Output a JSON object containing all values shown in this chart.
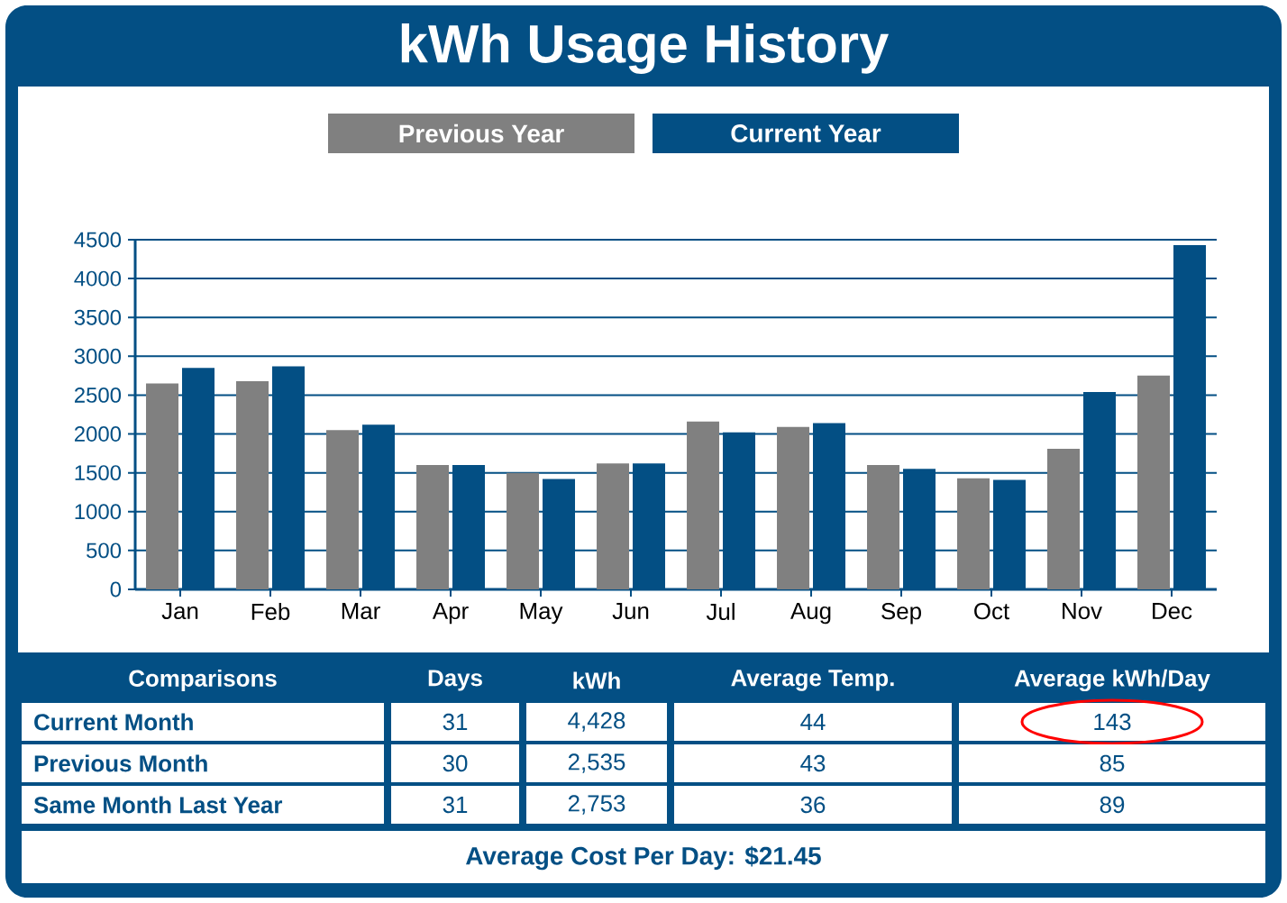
{
  "chart_data": {
    "type": "bar",
    "title": "kWh Usage History",
    "categories": [
      "Jan",
      "Feb",
      "Mar",
      "Apr",
      "May",
      "Jun",
      "Jul",
      "Aug",
      "Sep",
      "Oct",
      "Nov",
      "Dec"
    ],
    "series": [
      {
        "name": "Previous Year",
        "color": "#808080",
        "values": [
          2650,
          2680,
          2050,
          1600,
          1500,
          1620,
          2160,
          2090,
          1600,
          1430,
          1810,
          2750
        ]
      },
      {
        "name": "Current Year",
        "color": "#034f84",
        "values": [
          2850,
          2870,
          2120,
          1600,
          1420,
          1620,
          2020,
          2140,
          1550,
          1410,
          2540,
          4430
        ]
      }
    ],
    "ylim": [
      0,
      4500
    ],
    "yticks": [
      0,
      500,
      1000,
      1500,
      2000,
      2500,
      3000,
      3500,
      4000,
      4500
    ],
    "grid": "y",
    "legend": "top",
    "annotations": [
      "Comparisons",
      "Days",
      "kWh",
      "Average Temp.",
      "Average kWh/Day",
      "Current Month",
      "31",
      "4,428",
      "44",
      "143",
      "Previous Month",
      "30",
      "2,535",
      "43",
      "85",
      "Same Month Last Year",
      "31",
      "2,753",
      "36",
      "89",
      "Average Cost Per Day: $21.45"
    ]
  }
}
